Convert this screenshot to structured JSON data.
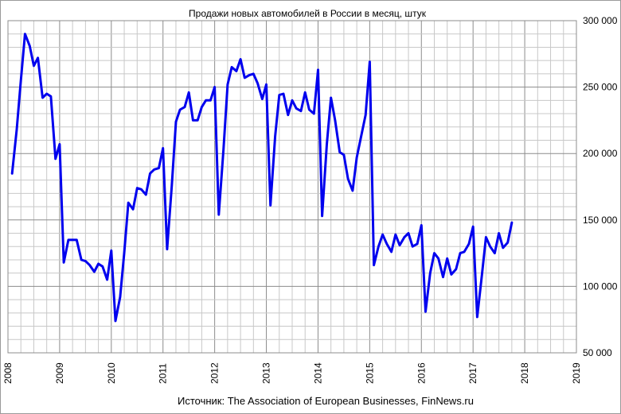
{
  "chart_data": {
    "type": "line",
    "title": "Продажи новых автомобилей в России в месяц, штук",
    "source": "Источник: The Association of European Businesses, FinNews.ru",
    "xlabel": "",
    "ylabel": "",
    "x_ticks": [
      "2008",
      "2009",
      "2010",
      "2011",
      "2012",
      "2013",
      "2014",
      "2015",
      "2016",
      "2017",
      "2018",
      "2019"
    ],
    "y_ticks": [
      "50 000",
      "100 000",
      "150 000",
      "200 000",
      "250 000",
      "300 000"
    ],
    "xlim": [
      2008,
      2019
    ],
    "ylim": [
      50000,
      300000
    ],
    "y_axis_position": "right",
    "grid": true,
    "line_color": "#0000ee",
    "grid_color": "#c8c8c8",
    "series": [
      {
        "x": [
          2008.08,
          2008.17,
          2008.25,
          2008.33,
          2008.42,
          2008.5,
          2008.58,
          2008.67,
          2008.75,
          2008.83,
          2008.92,
          2009.0,
          2009.08,
          2009.17,
          2009.25,
          2009.33,
          2009.42,
          2009.5,
          2009.58,
          2009.67,
          2009.75,
          2009.83,
          2009.92,
          2010.0,
          2010.08,
          2010.17,
          2010.25,
          2010.33,
          2010.42,
          2010.5,
          2010.58,
          2010.67,
          2010.75,
          2010.83,
          2010.92,
          2011.0,
          2011.08,
          2011.17,
          2011.25,
          2011.33,
          2011.42,
          2011.5,
          2011.58,
          2011.67,
          2011.75,
          2011.83,
          2011.92,
          2012.0,
          2012.08,
          2012.17,
          2012.25,
          2012.33,
          2012.42,
          2012.5,
          2012.58,
          2012.67,
          2012.75,
          2012.83,
          2012.92,
          2013.0,
          2013.08,
          2013.17,
          2013.25,
          2013.33,
          2013.42,
          2013.5,
          2013.58,
          2013.67,
          2013.75,
          2013.83,
          2013.92,
          2014.0,
          2014.08,
          2014.17,
          2014.25,
          2014.33,
          2014.42,
          2014.5,
          2014.58,
          2014.67,
          2014.75,
          2014.83,
          2014.92,
          2015.0,
          2015.08,
          2015.17,
          2015.25,
          2015.33,
          2015.42,
          2015.5,
          2015.58,
          2015.67,
          2015.75,
          2015.83,
          2015.92,
          2016.0,
          2016.08,
          2016.17,
          2016.25,
          2016.33,
          2016.42,
          2016.5,
          2016.58,
          2016.67,
          2016.75,
          2016.83,
          2016.92,
          2017.0,
          2017.08,
          2017.17,
          2017.25,
          2017.33,
          2017.42,
          2017.5,
          2017.58,
          2017.67,
          2017.75
        ],
        "values": [
          185000,
          218000,
          255000,
          290000,
          281000,
          266000,
          272000,
          242000,
          245000,
          243000,
          196000,
          207000,
          118000,
          135000,
          135000,
          135000,
          120000,
          119000,
          116000,
          111000,
          117000,
          115000,
          105000,
          127000,
          74000,
          92000,
          125000,
          163000,
          158000,
          174000,
          173000,
          169000,
          185000,
          188000,
          189000,
          204000,
          128000,
          176000,
          224000,
          233000,
          235000,
          246000,
          225000,
          225000,
          235000,
          240000,
          240000,
          250000,
          154000,
          203000,
          252000,
          265000,
          262000,
          271000,
          257000,
          259000,
          260000,
          253000,
          241000,
          252000,
          161000,
          213000,
          244000,
          245000,
          229000,
          240000,
          234000,
          232000,
          246000,
          233000,
          230000,
          263000,
          153000,
          207000,
          242000,
          225000,
          201000,
          199000,
          181000,
          172000,
          197000,
          212000,
          229000,
          269000,
          116000,
          130000,
          139000,
          132000,
          126000,
          139000,
          131000,
          137000,
          140000,
          130000,
          132000,
          146000,
          81000,
          110000,
          125000,
          121000,
          107000,
          121000,
          109000,
          113000,
          125000,
          126000,
          132000,
          145000,
          77000,
          108000,
          137000,
          130000,
          125000,
          140000,
          129000,
          133000,
          148000
        ]
      }
    ]
  }
}
